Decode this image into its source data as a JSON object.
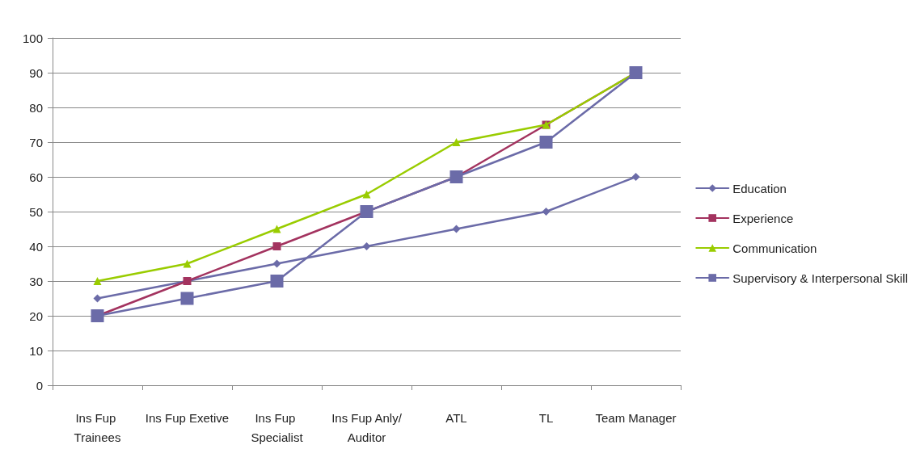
{
  "chart_data": {
    "type": "line",
    "categories": [
      "Ins Fup Trainees",
      "Ins Fup Exetive",
      "Ins Fup Specialist",
      "Ins Fup Anly/Auditor",
      "ATL",
      "TL",
      "Team Manager"
    ],
    "series": [
      {
        "name": "Education",
        "color": "#6b6ba8",
        "marker": "diamond",
        "values": [
          25,
          30,
          35,
          40,
          45,
          50,
          60
        ]
      },
      {
        "name": "Experience",
        "color": "#a3335f",
        "marker": "square",
        "values": [
          20,
          30,
          40,
          50,
          60,
          75,
          90
        ]
      },
      {
        "name": "Communication",
        "color": "#99cc00",
        "marker": "triangle",
        "values": [
          30,
          35,
          45,
          55,
          70,
          75,
          90
        ]
      },
      {
        "name": "Supervisory & Interpersonal Skill",
        "color": "#6b6ba8",
        "marker": "square",
        "values": [
          20,
          25,
          30,
          50,
          60,
          70,
          90
        ]
      }
    ],
    "ylim": [
      0,
      100
    ],
    "yticks": [
      0,
      10,
      20,
      30,
      40,
      50,
      60,
      70,
      80,
      90,
      100
    ],
    "grid": "y",
    "legend": "right",
    "line_style": "solid"
  }
}
